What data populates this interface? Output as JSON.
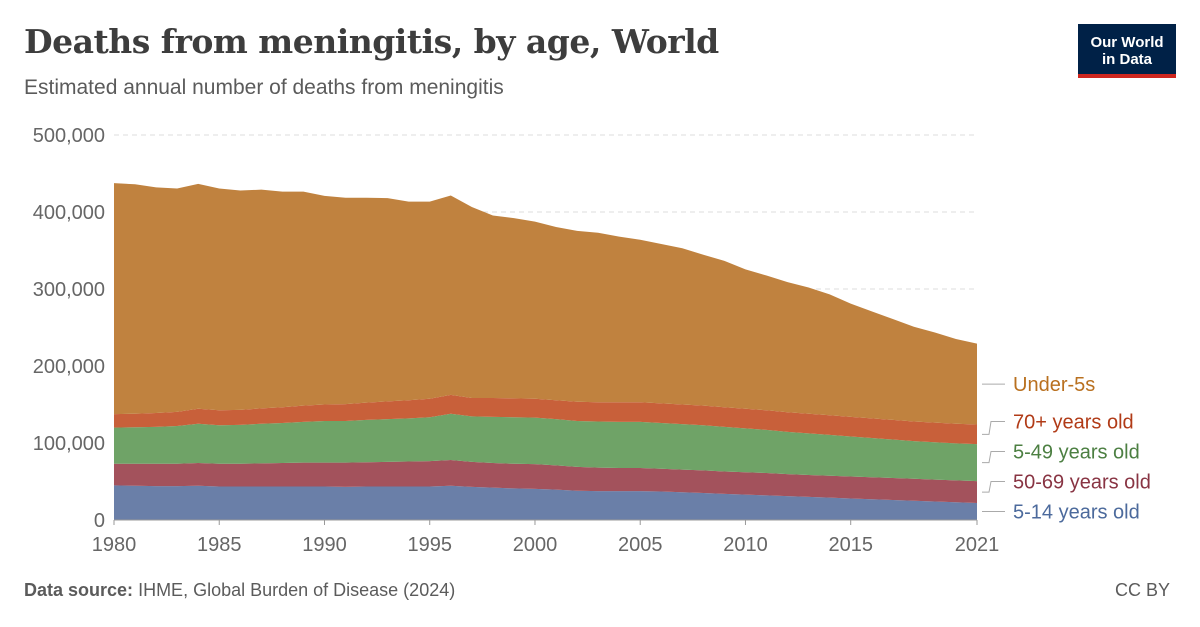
{
  "header": {
    "title": "Deaths from meningitis, by age, World",
    "subtitle": "Estimated annual number of deaths from meningitis"
  },
  "logo": {
    "line1": "Our World",
    "line2": "in Data"
  },
  "footer": {
    "source_label": "Data source:",
    "source_text": "IHME, Global Burden of Disease (2024)",
    "license": "CC BY"
  },
  "chart_data": {
    "type": "area",
    "stacked": true,
    "title": "Deaths from meningitis, by age, World",
    "xlabel": "",
    "ylabel": "",
    "xlim": [
      1980,
      2021
    ],
    "ylim": [
      0,
      500000
    ],
    "x_ticks": [
      "1980",
      "1985",
      "1990",
      "1995",
      "2000",
      "2005",
      "2010",
      "2015",
      "2021"
    ],
    "y_ticks": [
      "0",
      "100,000",
      "200,000",
      "300,000",
      "400,000",
      "500,000"
    ],
    "grid": true,
    "legend_position": "right",
    "x": [
      1980,
      1981,
      1982,
      1983,
      1984,
      1985,
      1986,
      1987,
      1988,
      1989,
      1990,
      1991,
      1992,
      1993,
      1994,
      1995,
      1996,
      1997,
      1998,
      1999,
      2000,
      2001,
      2002,
      2003,
      2004,
      2005,
      2006,
      2007,
      2008,
      2009,
      2010,
      2011,
      2012,
      2013,
      2014,
      2015,
      2016,
      2017,
      2018,
      2019,
      2020,
      2021
    ],
    "series": [
      {
        "name": "5-14 years old",
        "color": "#6a7fa8",
        "values": [
          45000,
          44500,
          44000,
          44000,
          44500,
          43500,
          43500,
          43500,
          43500,
          43500,
          43500,
          43000,
          43500,
          43500,
          43500,
          43500,
          44500,
          43000,
          42000,
          41000,
          40500,
          39500,
          38000,
          37500,
          37500,
          37500,
          37000,
          36000,
          35000,
          34000,
          33000,
          32000,
          31000,
          30000,
          29000,
          28000,
          27000,
          26000,
          25000,
          24000,
          23000,
          22000
        ]
      },
      {
        "name": "50-69 years old",
        "color": "#a3525c",
        "values": [
          28000,
          28500,
          29000,
          29000,
          29500,
          29500,
          29500,
          30000,
          30500,
          31000,
          31000,
          31500,
          31500,
          32000,
          32500,
          33000,
          33500,
          32500,
          32000,
          32000,
          32000,
          31500,
          31000,
          30500,
          30000,
          30000,
          29500,
          29500,
          29500,
          29000,
          29000,
          29000,
          28500,
          28500,
          28500,
          28500,
          28500,
          28500,
          28500,
          28500,
          28500,
          28500
        ]
      },
      {
        "name": "5-49 years old",
        "color": "#6fa367",
        "values": [
          47000,
          47500,
          48000,
          49000,
          51000,
          50000,
          50500,
          51500,
          52000,
          53000,
          54000,
          54000,
          55000,
          55500,
          56000,
          57000,
          60000,
          59000,
          60000,
          60500,
          60500,
          60000,
          59500,
          60000,
          60000,
          60000,
          59500,
          59000,
          58500,
          58000,
          57000,
          56000,
          55000,
          54000,
          53000,
          52000,
          51000,
          50000,
          49000,
          48500,
          48000,
          48000
        ]
      },
      {
        "name": "70+ years old",
        "color": "#c8603a",
        "values": [
          17500,
          17500,
          18000,
          18500,
          19500,
          19500,
          19500,
          20000,
          20500,
          21000,
          21500,
          22000,
          22500,
          23000,
          23500,
          24000,
          24500,
          24000,
          24500,
          24500,
          24500,
          24500,
          25000,
          25000,
          25500,
          25500,
          25500,
          25500,
          25500,
          25500,
          25500,
          25500,
          25500,
          25500,
          25500,
          25500,
          25500,
          25500,
          25500,
          25500,
          25500,
          25500
        ]
      },
      {
        "name": "Under-5s",
        "color": "#c0823f",
        "values": [
          300000,
          298000,
          293000,
          290000,
          292000,
          288000,
          285000,
          284000,
          280000,
          278000,
          271000,
          268000,
          266000,
          264000,
          258000,
          256000,
          259000,
          248000,
          237000,
          234000,
          230000,
          225000,
          222000,
          220000,
          215000,
          211000,
          207000,
          203000,
          196000,
          190000,
          181000,
          175000,
          169000,
          164000,
          157000,
          147000,
          139000,
          131000,
          123000,
          117000,
          110000,
          105000
        ]
      }
    ]
  }
}
